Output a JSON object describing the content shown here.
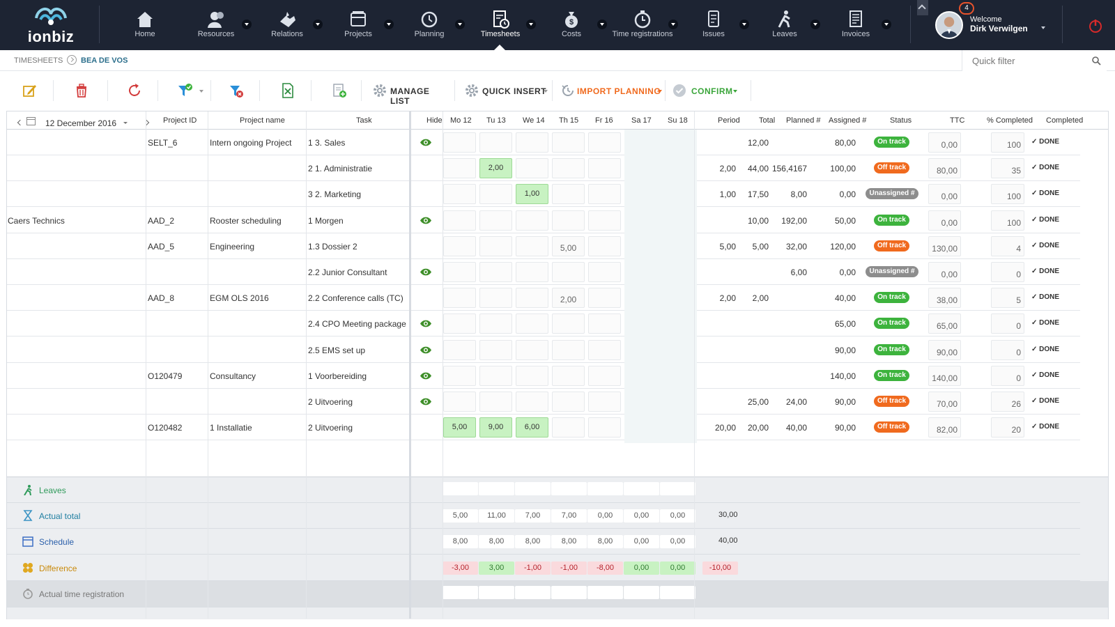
{
  "app": {
    "logo_text": "ionbiz"
  },
  "nav": {
    "items": [
      {
        "label": "Home",
        "icon": "home-icon"
      },
      {
        "label": "Resources",
        "icon": "users-icon"
      },
      {
        "label": "Relations",
        "icon": "handshake-icon"
      },
      {
        "label": "Projects",
        "icon": "folders-icon"
      },
      {
        "label": "Planning",
        "icon": "clock-arrow-icon"
      },
      {
        "label": "Timesheets",
        "icon": "timesheet-icon"
      },
      {
        "label": "Costs",
        "icon": "money-bag-icon"
      },
      {
        "label": "Time registrations",
        "icon": "stopwatch-icon"
      },
      {
        "label": "Issues",
        "icon": "issues-icon"
      },
      {
        "label": "Leaves",
        "icon": "walking-person-icon"
      },
      {
        "label": "Invoices",
        "icon": "invoice-icon"
      }
    ],
    "active": "Timesheets",
    "notifications": "4",
    "welcome": "Welcome",
    "user_name": "Dirk Verwilgen"
  },
  "breadcrumb": {
    "root": "TIMESHEETS",
    "current": "BEA DE VOS"
  },
  "quick_filter": {
    "placeholder": "Quick filter",
    "value": ""
  },
  "toolbar": {
    "manage_list": "MANAGE LIST",
    "quick_insert": "QUICK INSERT",
    "import_planning": "IMPORT PLANNING",
    "confirm": "CONFIRM"
  },
  "colors": {
    "nav_bg": "#1d2433",
    "accent_orange": "#f06a1e",
    "on_track": "#3db33d",
    "unassigned": "#8d8d8d",
    "hour_green": "#c8f2c2",
    "negative_red": "#b5222b"
  },
  "grid": {
    "date": "12 December 2016",
    "columns": {
      "project_id": "Project ID",
      "project_name": "Project name",
      "task": "Task",
      "hide": "Hide",
      "days": [
        "Mo 12",
        "Tu 13",
        "We 14",
        "Th 15",
        "Fr 16",
        "Sa 17",
        "Su 18"
      ],
      "period": "Period",
      "total": "Total",
      "planned": "Planned #",
      "assigned": "Assigned #",
      "status": "Status",
      "ttc": "TTC",
      "pct": "% Completed",
      "completed": "Completed"
    },
    "rows": [
      {
        "client": "",
        "pid": "SELT_6",
        "pname": "Intern ongoing Project",
        "task": "1 3. Sales",
        "hide": true,
        "days": [
          "",
          "",
          "",
          "",
          "",
          "",
          ""
        ],
        "green": [],
        "period": "",
        "total": "12,00",
        "planned": "",
        "assigned": "80,00",
        "status": "On track",
        "ttc": "0,00",
        "pct": "100",
        "done": "✓ DONE"
      },
      {
        "client": "",
        "pid": "",
        "pname": "",
        "task": "2 1. Administratie",
        "hide": false,
        "days": [
          "",
          "2,00",
          "",
          "",
          "",
          "",
          ""
        ],
        "green": [
          1
        ],
        "period": "2,00",
        "total": "44,00",
        "planned": "156,4167",
        "assigned": "100,00",
        "status": "Off track",
        "ttc": "80,00",
        "pct": "35",
        "done": "✓ DONE"
      },
      {
        "client": "",
        "pid": "",
        "pname": "",
        "task": "3 2. Marketing",
        "hide": false,
        "days": [
          "",
          "",
          "1,00",
          "",
          "",
          "",
          ""
        ],
        "green": [
          2
        ],
        "period": "1,00",
        "total": "17,50",
        "planned": "8,00",
        "assigned": "0,00",
        "status": "Unassigned #",
        "ttc": "0,00",
        "pct": "100",
        "done": "✓ DONE"
      },
      {
        "client": "Caers Technics",
        "pid": "AAD_2",
        "pname": "Rooster scheduling",
        "task": "1 Morgen",
        "hide": true,
        "days": [
          "",
          "",
          "",
          "",
          "",
          "",
          ""
        ],
        "green": [],
        "period": "",
        "total": "10,00",
        "planned": "192,00",
        "assigned": "50,00",
        "status": "On track",
        "ttc": "0,00",
        "pct": "100",
        "done": "✓ DONE"
      },
      {
        "client": "",
        "pid": "AAD_5",
        "pname": "Engineering",
        "task": "1.3 Dossier 2",
        "hide": false,
        "days": [
          "",
          "",
          "",
          "5,00",
          "",
          "",
          ""
        ],
        "green": [],
        "period": "5,00",
        "total": "5,00",
        "planned": "32,00",
        "assigned": "120,00",
        "status": "Off track",
        "ttc": "130,00",
        "pct": "4",
        "done": "✓ DONE"
      },
      {
        "client": "",
        "pid": "",
        "pname": "",
        "task": "2.2 Junior Consultant",
        "hide": true,
        "days": [
          "",
          "",
          "",
          "",
          "",
          "",
          ""
        ],
        "green": [],
        "period": "",
        "total": "",
        "planned": "6,00",
        "assigned": "0,00",
        "status": "Unassigned #",
        "ttc": "0,00",
        "pct": "0",
        "done": "✓ DONE"
      },
      {
        "client": "",
        "pid": "AAD_8",
        "pname": "EGM OLS 2016",
        "task": "2.2 Conference calls (TC)",
        "hide": false,
        "days": [
          "",
          "",
          "",
          "2,00",
          "",
          "",
          ""
        ],
        "green": [],
        "period": "2,00",
        "total": "2,00",
        "planned": "",
        "assigned": "40,00",
        "status": "On track",
        "ttc": "38,00",
        "pct": "5",
        "done": "✓ DONE"
      },
      {
        "client": "",
        "pid": "",
        "pname": "",
        "task": "2.4 CPO Meeting package",
        "hide": true,
        "days": [
          "",
          "",
          "",
          "",
          "",
          "",
          ""
        ],
        "green": [],
        "period": "",
        "total": "",
        "planned": "",
        "assigned": "65,00",
        "status": "On track",
        "ttc": "65,00",
        "pct": "0",
        "done": "✓ DONE"
      },
      {
        "client": "",
        "pid": "",
        "pname": "",
        "task": "2.5 EMS set up",
        "hide": true,
        "days": [
          "",
          "",
          "",
          "",
          "",
          "",
          ""
        ],
        "green": [],
        "period": "",
        "total": "",
        "planned": "",
        "assigned": "90,00",
        "status": "On track",
        "ttc": "90,00",
        "pct": "0",
        "done": "✓ DONE"
      },
      {
        "client": "",
        "pid": "O120479",
        "pname": "Consultancy",
        "task": "1 Voorbereiding",
        "hide": true,
        "days": [
          "",
          "",
          "",
          "",
          "",
          "",
          ""
        ],
        "green": [],
        "period": "",
        "total": "",
        "planned": "",
        "assigned": "140,00",
        "status": "On track",
        "ttc": "140,00",
        "pct": "0",
        "done": "✓ DONE"
      },
      {
        "client": "",
        "pid": "",
        "pname": "",
        "task": "2 Uitvoering",
        "hide": true,
        "days": [
          "",
          "",
          "",
          "",
          "",
          "",
          ""
        ],
        "green": [],
        "period": "",
        "total": "25,00",
        "planned": "24,00",
        "assigned": "90,00",
        "status": "Off track",
        "ttc": "70,00",
        "pct": "26",
        "done": "✓ DONE"
      },
      {
        "client": "",
        "pid": "O120482",
        "pname": "1 Installatie",
        "task": "2 Uitvoering",
        "hide": false,
        "days": [
          "5,00",
          "9,00",
          "6,00",
          "",
          "",
          "",
          ""
        ],
        "green": [
          0,
          1,
          2
        ],
        "period": "20,00",
        "total": "20,00",
        "planned": "40,00",
        "assigned": "90,00",
        "status": "Off track",
        "ttc": "82,00",
        "pct": "20",
        "done": "✓ DONE"
      }
    ]
  },
  "summary": {
    "leaves": {
      "label": "Leaves",
      "values": [
        "",
        "",
        "",
        "",
        "",
        "",
        ""
      ],
      "period": ""
    },
    "actual_total": {
      "label": "Actual total",
      "values": [
        "5,00",
        "11,00",
        "7,00",
        "7,00",
        "0,00",
        "0,00",
        "0,00"
      ],
      "period": "30,00"
    },
    "schedule": {
      "label": "Schedule",
      "values": [
        "8,00",
        "8,00",
        "8,00",
        "8,00",
        "8,00",
        "0,00",
        "0,00"
      ],
      "period": "40,00"
    },
    "difference": {
      "label": "Difference",
      "values": [
        "-3,00",
        "3,00",
        "-1,00",
        "-1,00",
        "-8,00",
        "0,00",
        "0,00"
      ],
      "period": "-10,00"
    },
    "actual_time_registration": {
      "label": "Actual time registration",
      "values": [
        "",
        "",
        "",
        "",
        "",
        "",
        ""
      ],
      "period": ""
    }
  }
}
